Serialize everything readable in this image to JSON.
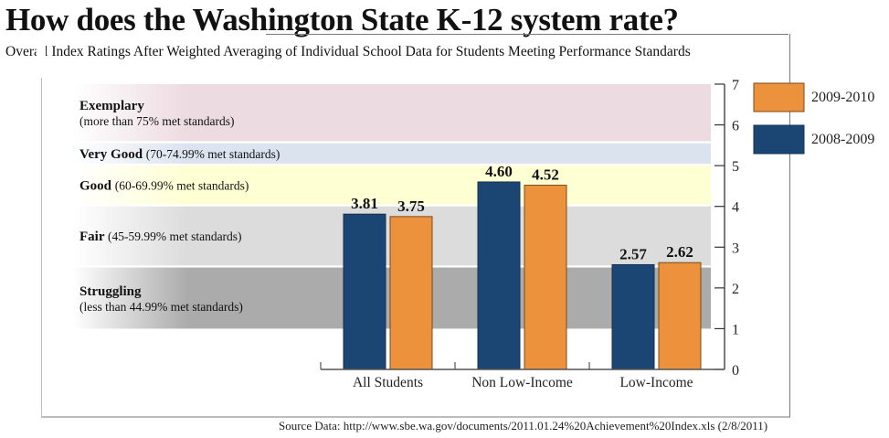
{
  "title": "How does the Washington State K-12 system rate?",
  "subtitle": "Overall Index Ratings After Weighted Averaging of Individual School Data for Students Meeting Performance Standards",
  "source": "Source Data: http://www.sbe.wa.gov/documents/2011.01.24%20Achievement%20Index.xls (2/8/2011)",
  "colors": {
    "series_2008_2009": "#1b4674",
    "series_2009_2010": "#ec913c",
    "band_exemplary": "#ecdbe0",
    "band_very_good": "#dbe3ef",
    "band_good": "#ffffd4",
    "band_fair": "#dcdcdc",
    "band_struggling": "#ababab"
  },
  "bands": [
    {
      "key": "exemplary",
      "name": "Exemplary",
      "desc": "(more than 75% met standards)",
      "inline": false,
      "range": [
        5.6,
        7.0
      ]
    },
    {
      "key": "very_good",
      "name": "Very Good",
      "desc": "(70-74.99% met standards)",
      "inline": true,
      "range": [
        5.05,
        5.55
      ]
    },
    {
      "key": "good",
      "name": "Good",
      "desc": "(60-69.99% met standards)",
      "inline": true,
      "range": [
        4.05,
        5.0
      ]
    },
    {
      "key": "fair",
      "name": "Fair",
      "desc": "(45-59.99% met standards)",
      "inline": true,
      "range": [
        2.55,
        4.0
      ]
    },
    {
      "key": "struggling",
      "name": "Struggling",
      "desc": "(less than 44.99% met standards)",
      "inline": false,
      "range": [
        1.0,
        2.5
      ]
    }
  ],
  "chart_data": {
    "type": "bar",
    "title": "How does the Washington State K-12 system rate?",
    "subtitle": "Overall Index Ratings After Weighted Averaging of Individual School Data for Students Meeting Performance Standards",
    "xlabel": "",
    "ylabel": "",
    "categories": [
      "All Students",
      "Non Low-Income",
      "Low-Income"
    ],
    "series": [
      {
        "name": "2008-2009",
        "values": [
          3.81,
          4.6,
          2.57
        ],
        "labels": [
          "3.81",
          "4.60",
          "2.57"
        ]
      },
      {
        "name": "2009-2010",
        "values": [
          3.75,
          4.52,
          2.62
        ],
        "labels": [
          "3.75",
          "4.52",
          "2.62"
        ]
      }
    ],
    "ylim": [
      0,
      7
    ],
    "yticks": [
      "0",
      "1",
      "2",
      "3",
      "4",
      "5",
      "6",
      "7"
    ],
    "y_axis_side": "right",
    "grid": false,
    "legend": {
      "placement": "top-right",
      "entries": [
        "2009-2010",
        "2008-2009"
      ]
    }
  }
}
